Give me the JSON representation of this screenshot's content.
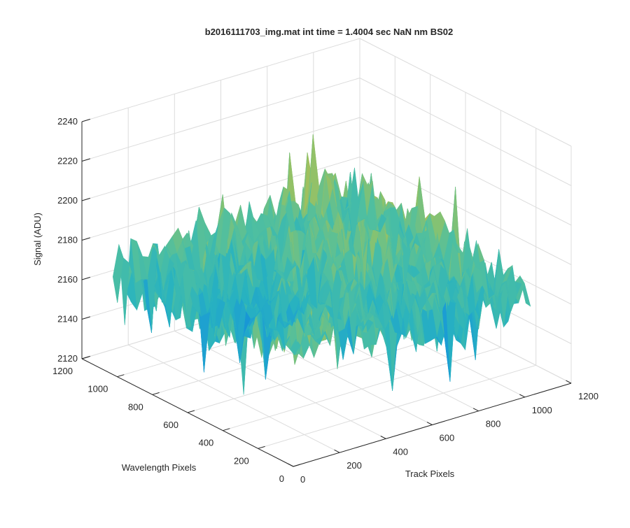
{
  "chart_data": {
    "type": "surface",
    "title": "b2016111703_img.mat int time = 1.4004 sec  NaN nm BS02",
    "xlabel": "Track Pixels",
    "ylabel": "Wavelength Pixels",
    "zlabel": "Signal (ADU)",
    "xlim": [
      0,
      1200
    ],
    "ylim": [
      0,
      1200
    ],
    "zlim": [
      2120,
      2240
    ],
    "xticks": [
      "0",
      "200",
      "400",
      "600",
      "800",
      "1000",
      "1200"
    ],
    "yticks": [
      "0",
      "200",
      "400",
      "600",
      "800",
      "1000",
      "1200"
    ],
    "zticks": [
      "2120",
      "2140",
      "2160",
      "2180",
      "2200",
      "2220",
      "2240"
    ],
    "grid": true,
    "colormap": "parula",
    "surface": {
      "x_extent": [
        0,
        1024
      ],
      "y_extent": [
        0,
        1024
      ],
      "mean_level": 2175,
      "typical_range": [
        2140,
        2210
      ],
      "peak_max": 2230
    }
  },
  "colors": {
    "colormap_stops": [
      "#0c77c9",
      "#1a9bd6",
      "#29b3bf",
      "#4fbfa0",
      "#8cc26c",
      "#c9bd43",
      "#f0b935"
    ],
    "axis": "#262626",
    "grid": "#dcdcdc"
  }
}
